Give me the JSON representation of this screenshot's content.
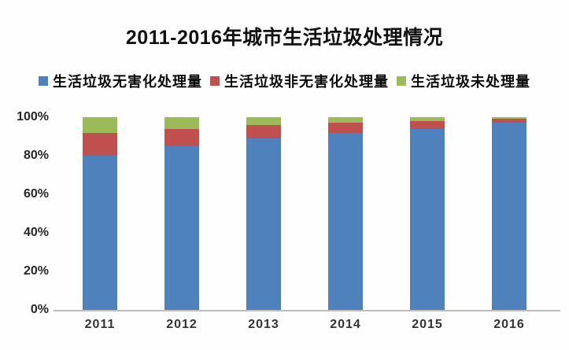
{
  "title": "2011-2016年城市生活垃圾处理情况",
  "legend": [
    {
      "label": "生活垃圾无害化处理量",
      "color": "#4F81BD"
    },
    {
      "label": "生活垃圾非无害化处理量",
      "color": "#C0504D"
    },
    {
      "label": "生活垃圾未处理量",
      "color": "#9BBB59"
    }
  ],
  "chart_data": {
    "type": "bar",
    "stacked": true,
    "unit": "%",
    "title": "2011-2016年城市生活垃圾处理情况",
    "categories": [
      "2011",
      "2012",
      "2013",
      "2014",
      "2015",
      "2016"
    ],
    "series": [
      {
        "name": "生活垃圾无害化处理量",
        "color": "#4F81BD",
        "values": [
          80,
          85,
          89,
          92,
          94,
          97
        ]
      },
      {
        "name": "生活垃圾非无害化处理量",
        "color": "#C0504D",
        "values": [
          12,
          9,
          7,
          5,
          4,
          2
        ]
      },
      {
        "name": "生活垃圾未处理量",
        "color": "#9BBB59",
        "values": [
          8,
          6,
          4,
          3,
          2,
          1
        ]
      }
    ],
    "xlabel": "",
    "ylabel": "",
    "ylim": [
      0,
      100
    ],
    "yticks": [
      "0%",
      "20%",
      "40%",
      "60%",
      "80%",
      "100%"
    ],
    "grid": false,
    "legend_position": "top"
  },
  "colors": {
    "background": "#FEFEFE",
    "axis_line": "#BDBDBD",
    "tick_text": "#262626",
    "title_text": "#111111"
  }
}
